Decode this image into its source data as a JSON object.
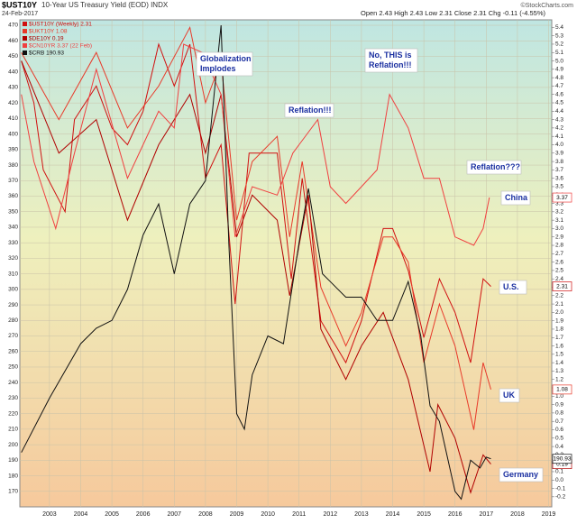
{
  "chart_data": {
    "type": "line",
    "title": "$UST10Y",
    "subtitle": "10-Year US Treasury Yield (EOD) INDX",
    "date": "24-Feb-2017",
    "quote": "Open 2.43  High 2.43  Low 2.31  Close 2.31  Chg -0.11 (-4.55%)",
    "source": "©StockCharts.com",
    "grid": true,
    "xlim": [
      2002.05,
      2019.1
    ],
    "xticks": [
      2003,
      2004,
      2005,
      2006,
      2007,
      2008,
      2009,
      2010,
      2011,
      2012,
      2013,
      2014,
      2015,
      2016,
      2017,
      2018,
      2019
    ],
    "ylim": [
      160,
      473.5
    ],
    "yticks": [
      170,
      180,
      190,
      200,
      210,
      220,
      230,
      240,
      250,
      260,
      270,
      280,
      290,
      300,
      310,
      320,
      330,
      340,
      350,
      360,
      370,
      380,
      390,
      400,
      410,
      420,
      430,
      440,
      450,
      460,
      470
    ],
    "y2lim": [
      -0.32,
      5.49
    ],
    "y2ticks": [
      5.4,
      5.3,
      5.2,
      5.1,
      {
        "value": 5,
        "label": "5.0"
      },
      4.9,
      4.8,
      4.7,
      4.6,
      4.5,
      4.4,
      4.3,
      4.2,
      4.1,
      {
        "value": 4,
        "label": "4.0"
      },
      3.9,
      3.8,
      3.7,
      3.6,
      3.5,
      3.4,
      3.3,
      3.2,
      3.1,
      {
        "value": 3,
        "label": "3.0"
      },
      2.9,
      2.8,
      2.7,
      2.6,
      2.5,
      2.4,
      2.3,
      2.2,
      2.1,
      {
        "value": 2,
        "label": "2.0"
      },
      1.9,
      1.8,
      1.7,
      1.6,
      1.5,
      1.4,
      1.3,
      1.2,
      1.1,
      {
        "value": 1,
        "label": "1.0"
      },
      0.9,
      0.8,
      0.7,
      0.6,
      0.5,
      0.4,
      0.3,
      0.2,
      0.1,
      {
        "value": 0,
        "label": "0.0"
      },
      -0.1,
      -0.2
    ],
    "series": [
      {
        "name": "$UST10Y (Weekly) 2.31",
        "color": "#d01010",
        "axis": "y2",
        "end_label": "2.31",
        "x": [
          2002.1,
          2002.5,
          2002.8,
          2003.5,
          2003.8,
          2004.5,
          2005.0,
          2005.5,
          2006.0,
          2006.5,
          2007.0,
          2007.5,
          2008.0,
          2008.5,
          2008.95,
          2009.4,
          2010.3,
          2010.75,
          2011.1,
          2011.7,
          2012.5,
          2013.0,
          2013.7,
          2014.0,
          2014.5,
          2015.0,
          2015.5,
          2016.0,
          2016.5,
          2016.9,
          2017.15
        ],
        "values": [
          5.0,
          4.5,
          3.7,
          3.2,
          4.3,
          4.7,
          4.2,
          4.0,
          4.4,
          5.2,
          4.7,
          5.2,
          3.6,
          4.0,
          2.1,
          3.9,
          3.9,
          2.4,
          3.6,
          1.9,
          1.4,
          1.9,
          3.0,
          3.0,
          2.5,
          1.7,
          2.4,
          2.0,
          1.4,
          2.4,
          2.31
        ]
      },
      {
        "name": "$UKT10Y 1.08",
        "color": "#e83a2a",
        "axis": "y2",
        "end_label": "1.08",
        "x": [
          2002.1,
          2003.3,
          2004.5,
          2005.5,
          2006.5,
          2007.5,
          2008.0,
          2008.5,
          2009.0,
          2009.5,
          2010.3,
          2010.7,
          2011.1,
          2011.7,
          2012.5,
          2013.0,
          2013.7,
          2014.0,
          2014.5,
          2015.0,
          2015.5,
          2016.0,
          2016.6,
          2016.9,
          2017.15
        ],
        "values": [
          5.1,
          4.3,
          5.1,
          4.2,
          4.7,
          5.4,
          4.5,
          5.0,
          3.1,
          3.8,
          4.1,
          2.9,
          3.8,
          2.3,
          1.6,
          2.0,
          2.9,
          2.9,
          2.6,
          1.4,
          2.1,
          1.6,
          0.6,
          1.4,
          1.08
        ]
      },
      {
        "name": "$DE10Y 0.19",
        "color": "#b00000",
        "axis": "y2",
        "end_label": "0.19",
        "x": [
          2002.1,
          2003.3,
          2004.5,
          2005.5,
          2006.5,
          2007.5,
          2008.0,
          2008.5,
          2009.0,
          2009.5,
          2010.3,
          2010.7,
          2011.3,
          2011.7,
          2012.5,
          2013.0,
          2013.7,
          2014.5,
          2015.2,
          2015.45,
          2016.0,
          2016.5,
          2016.9,
          2017.15
        ],
        "values": [
          5.0,
          3.9,
          4.3,
          3.1,
          4.0,
          4.6,
          3.9,
          4.6,
          2.9,
          3.4,
          3.1,
          2.2,
          3.4,
          1.8,
          1.2,
          1.6,
          2.0,
          1.2,
          0.1,
          0.9,
          0.5,
          -0.15,
          0.3,
          0.19
        ]
      },
      {
        "name": "$CN10YR 3.37 (22 Feb)",
        "color": "#f04040",
        "axis": "y2",
        "end_label": "3.37",
        "x": [
          2002.1,
          2002.5,
          2003.2,
          2003.8,
          2004.5,
          2005.5,
          2006.0,
          2006.5,
          2007.0,
          2007.3,
          2007.9,
          2008.5,
          2008.95,
          2009.5,
          2010.3,
          2010.8,
          2011.0,
          2011.6,
          2012.0,
          2012.5,
          2013.0,
          2013.5,
          2013.9,
          2014.5,
          2015.0,
          2015.5,
          2016.0,
          2016.6,
          2016.9,
          2017.1
        ],
        "values": [
          4.6,
          3.8,
          3.0,
          3.9,
          4.9,
          3.6,
          4.0,
          4.4,
          4.2,
          5.2,
          5.1,
          4.6,
          2.9,
          3.5,
          3.4,
          3.9,
          4.0,
          4.3,
          3.5,
          3.3,
          3.5,
          3.7,
          4.6,
          4.2,
          3.6,
          3.6,
          2.9,
          2.8,
          3.0,
          3.37
        ]
      },
      {
        "name": "$CRB 190.93",
        "color": "#111111",
        "axis": "y",
        "end_label": "190.93",
        "x": [
          2002.1,
          2003.0,
          2004.0,
          2004.5,
          2005.0,
          2005.5,
          2006.0,
          2006.5,
          2007.0,
          2007.5,
          2008.0,
          2008.5,
          2008.75,
          2009.0,
          2009.25,
          2009.5,
          2010.0,
          2010.5,
          2011.0,
          2011.3,
          2011.75,
          2012.0,
          2012.5,
          2013.0,
          2013.5,
          2014.0,
          2014.5,
          2014.9,
          2015.2,
          2015.5,
          2016.0,
          2016.2,
          2016.5,
          2016.8,
          2017.0,
          2017.15
        ],
        "values": [
          195,
          230,
          265,
          275,
          280,
          300,
          335,
          355,
          310,
          355,
          370,
          470,
          330,
          220,
          210,
          245,
          270,
          265,
          330,
          365,
          310,
          305,
          295,
          295,
          280,
          280,
          305,
          270,
          225,
          215,
          170,
          165,
          190,
          185,
          192,
          190.93
        ]
      }
    ],
    "annotations": [
      {
        "lines": [
          "Globalization",
          "Implodes"
        ]
      },
      {
        "lines": [
          "Reflation!!!"
        ]
      },
      {
        "lines": [
          "No, THIS is",
          "Reflation!!!"
        ]
      },
      {
        "lines": [
          "Reflation???"
        ]
      },
      {
        "lines": [
          "China"
        ]
      },
      {
        "lines": [
          "U.S."
        ]
      },
      {
        "lines": [
          "UK"
        ]
      },
      {
        "lines": [
          "Germany"
        ]
      }
    ]
  }
}
